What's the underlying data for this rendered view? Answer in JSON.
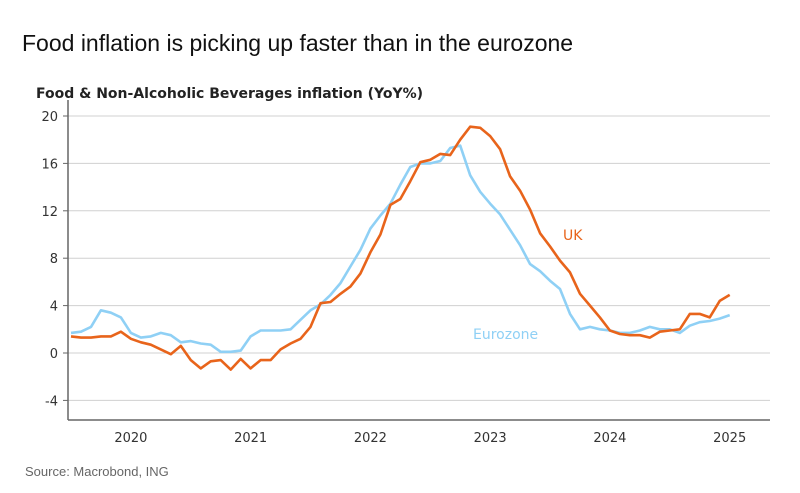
{
  "title": "Food inflation is picking up faster than in the eurozone",
  "source": "Source: Macrobond, ING",
  "chart_data": {
    "type": "line",
    "title": "Food & Non-Alcoholic Beverages inflation (YoY%)",
    "xlabel": "",
    "ylabel": "",
    "x_start": "2019-07",
    "x_end": "2025-01",
    "frequency": "monthly",
    "ylim": [
      -5,
      20
    ],
    "yticks": [
      20,
      16,
      12,
      8,
      4,
      0,
      -4
    ],
    "xticks": [
      "2020",
      "2021",
      "2022",
      "2023",
      "2024",
      "2025"
    ],
    "grid": true,
    "series": [
      {
        "name": "UK",
        "color": "#e8641b",
        "values": [
          1.4,
          1.3,
          1.3,
          1.4,
          1.4,
          1.8,
          1.2,
          0.9,
          0.7,
          0.3,
          -0.1,
          0.6,
          -0.6,
          -1.3,
          -0.7,
          -0.6,
          -1.4,
          -0.5,
          -1.3,
          -0.6,
          -0.6,
          0.3,
          0.8,
          1.2,
          2.2,
          4.2,
          4.3,
          5.0,
          5.6,
          6.7,
          8.5,
          10.0,
          12.5,
          13.0,
          14.5,
          16.1,
          16.3,
          16.8,
          16.7,
          18.0,
          19.1,
          19.0,
          18.3,
          17.2,
          14.9,
          13.7,
          12.1,
          10.1,
          9.0,
          7.8,
          6.8,
          5.0,
          4.0,
          3.0,
          1.9,
          1.6,
          1.5,
          1.5,
          1.3,
          1.8,
          1.9,
          2.0,
          3.3,
          3.3,
          3.0,
          4.4,
          4.9
        ]
      },
      {
        "name": "Eurozone",
        "color": "#8fd0f5",
        "values": [
          1.7,
          1.8,
          2.2,
          3.6,
          3.4,
          3.0,
          1.7,
          1.3,
          1.4,
          1.7,
          1.5,
          0.9,
          1.0,
          0.8,
          0.7,
          0.1,
          0.1,
          0.2,
          1.4,
          1.9,
          1.9,
          1.9,
          2.0,
          2.8,
          3.6,
          4.1,
          4.9,
          5.9,
          7.3,
          8.7,
          10.5,
          11.6,
          12.6,
          14.2,
          15.7,
          16.0,
          16.0,
          16.2,
          17.3,
          17.5,
          15.0,
          13.6,
          12.6,
          11.7,
          10.4,
          9.1,
          7.5,
          6.9,
          6.1,
          5.4,
          3.3,
          2.0,
          2.2,
          2.0,
          1.9,
          1.7,
          1.7,
          1.9,
          2.2,
          2.0,
          2.0,
          1.7,
          2.3,
          2.6,
          2.7,
          2.9,
          3.2
        ]
      }
    ],
    "annotations": [
      "UK",
      "Eurozone"
    ]
  }
}
